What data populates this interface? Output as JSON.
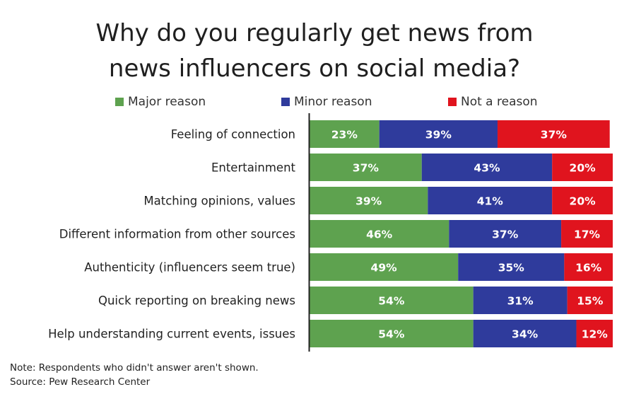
{
  "title_lines": [
    "Why do you regularly get news from",
    "news influencers on social media?"
  ],
  "legend": [
    {
      "label": "Major reason",
      "color": "#5ea24f"
    },
    {
      "label": "Minor reason",
      "color": "#2f3b9c"
    },
    {
      "label": "Not a reason",
      "color": "#e0141e"
    }
  ],
  "notes": {
    "note": "Note: Respondents who didn't answer aren't shown.",
    "source": "Source: Pew Research Center"
  },
  "chart_data": {
    "type": "bar",
    "orientation": "horizontal",
    "stacked": true,
    "title": "Why do you regularly get news from news influencers on social media?",
    "categories": [
      "Feeling of connection",
      "Entertainment",
      "Matching opinions, values",
      "Different information from other sources",
      "Authenticity (influencers seem true)",
      "Quick reporting on breaking news",
      "Help understanding current events, issues"
    ],
    "series": [
      {
        "name": "Major reason",
        "color": "#5ea24f",
        "values": [
          23,
          37,
          39,
          46,
          49,
          54,
          54
        ]
      },
      {
        "name": "Minor reason",
        "color": "#2f3b9c",
        "values": [
          39,
          43,
          41,
          37,
          35,
          31,
          34
        ]
      },
      {
        "name": "Not a reason",
        "color": "#e0141e",
        "values": [
          37,
          20,
          20,
          17,
          16,
          15,
          12
        ]
      }
    ],
    "value_suffix": "%",
    "xlim": [
      0,
      100
    ],
    "legend_position": "top"
  }
}
